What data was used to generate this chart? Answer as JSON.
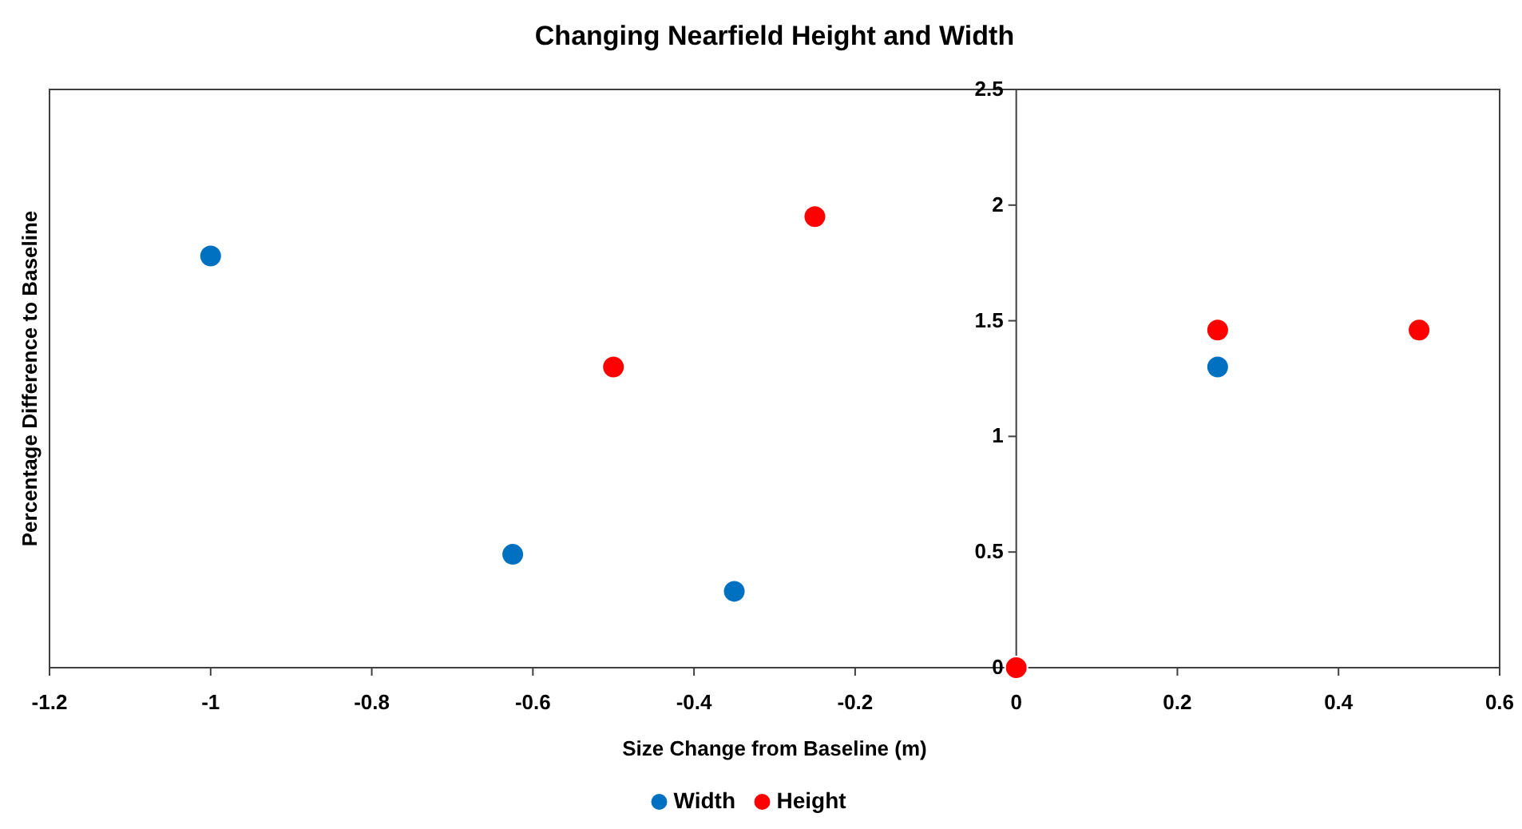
{
  "chart_data": {
    "type": "scatter",
    "title": "Changing Nearfield Height and Width",
    "xlabel": "Size Change from Baseline (m)",
    "ylabel": "Percentage Difference to Baseline",
    "xlim": [
      -1.2,
      0.6
    ],
    "xticks": [
      -1.2,
      -1,
      -0.8,
      -0.6,
      -0.4,
      -0.2,
      0,
      0.2,
      0.4,
      0.6
    ],
    "ylim": [
      0,
      2.5
    ],
    "yticks": [
      0,
      0.5,
      1,
      1.5,
      2,
      2.5
    ],
    "grid": false,
    "legend": "bottom",
    "marker": "circle",
    "series": [
      {
        "name": "Width",
        "color": "#0070c0",
        "x": [
          -1,
          -0.625,
          -0.35,
          0.25
        ],
        "values": [
          1.78,
          0.49,
          0.33,
          1.3
        ]
      },
      {
        "name": "Height",
        "color": "#ff0000",
        "x": [
          -0.5,
          -0.25,
          0,
          0.25,
          0.5
        ],
        "values": [
          1.3,
          1.95,
          0,
          1.46,
          1.46
        ]
      }
    ]
  }
}
